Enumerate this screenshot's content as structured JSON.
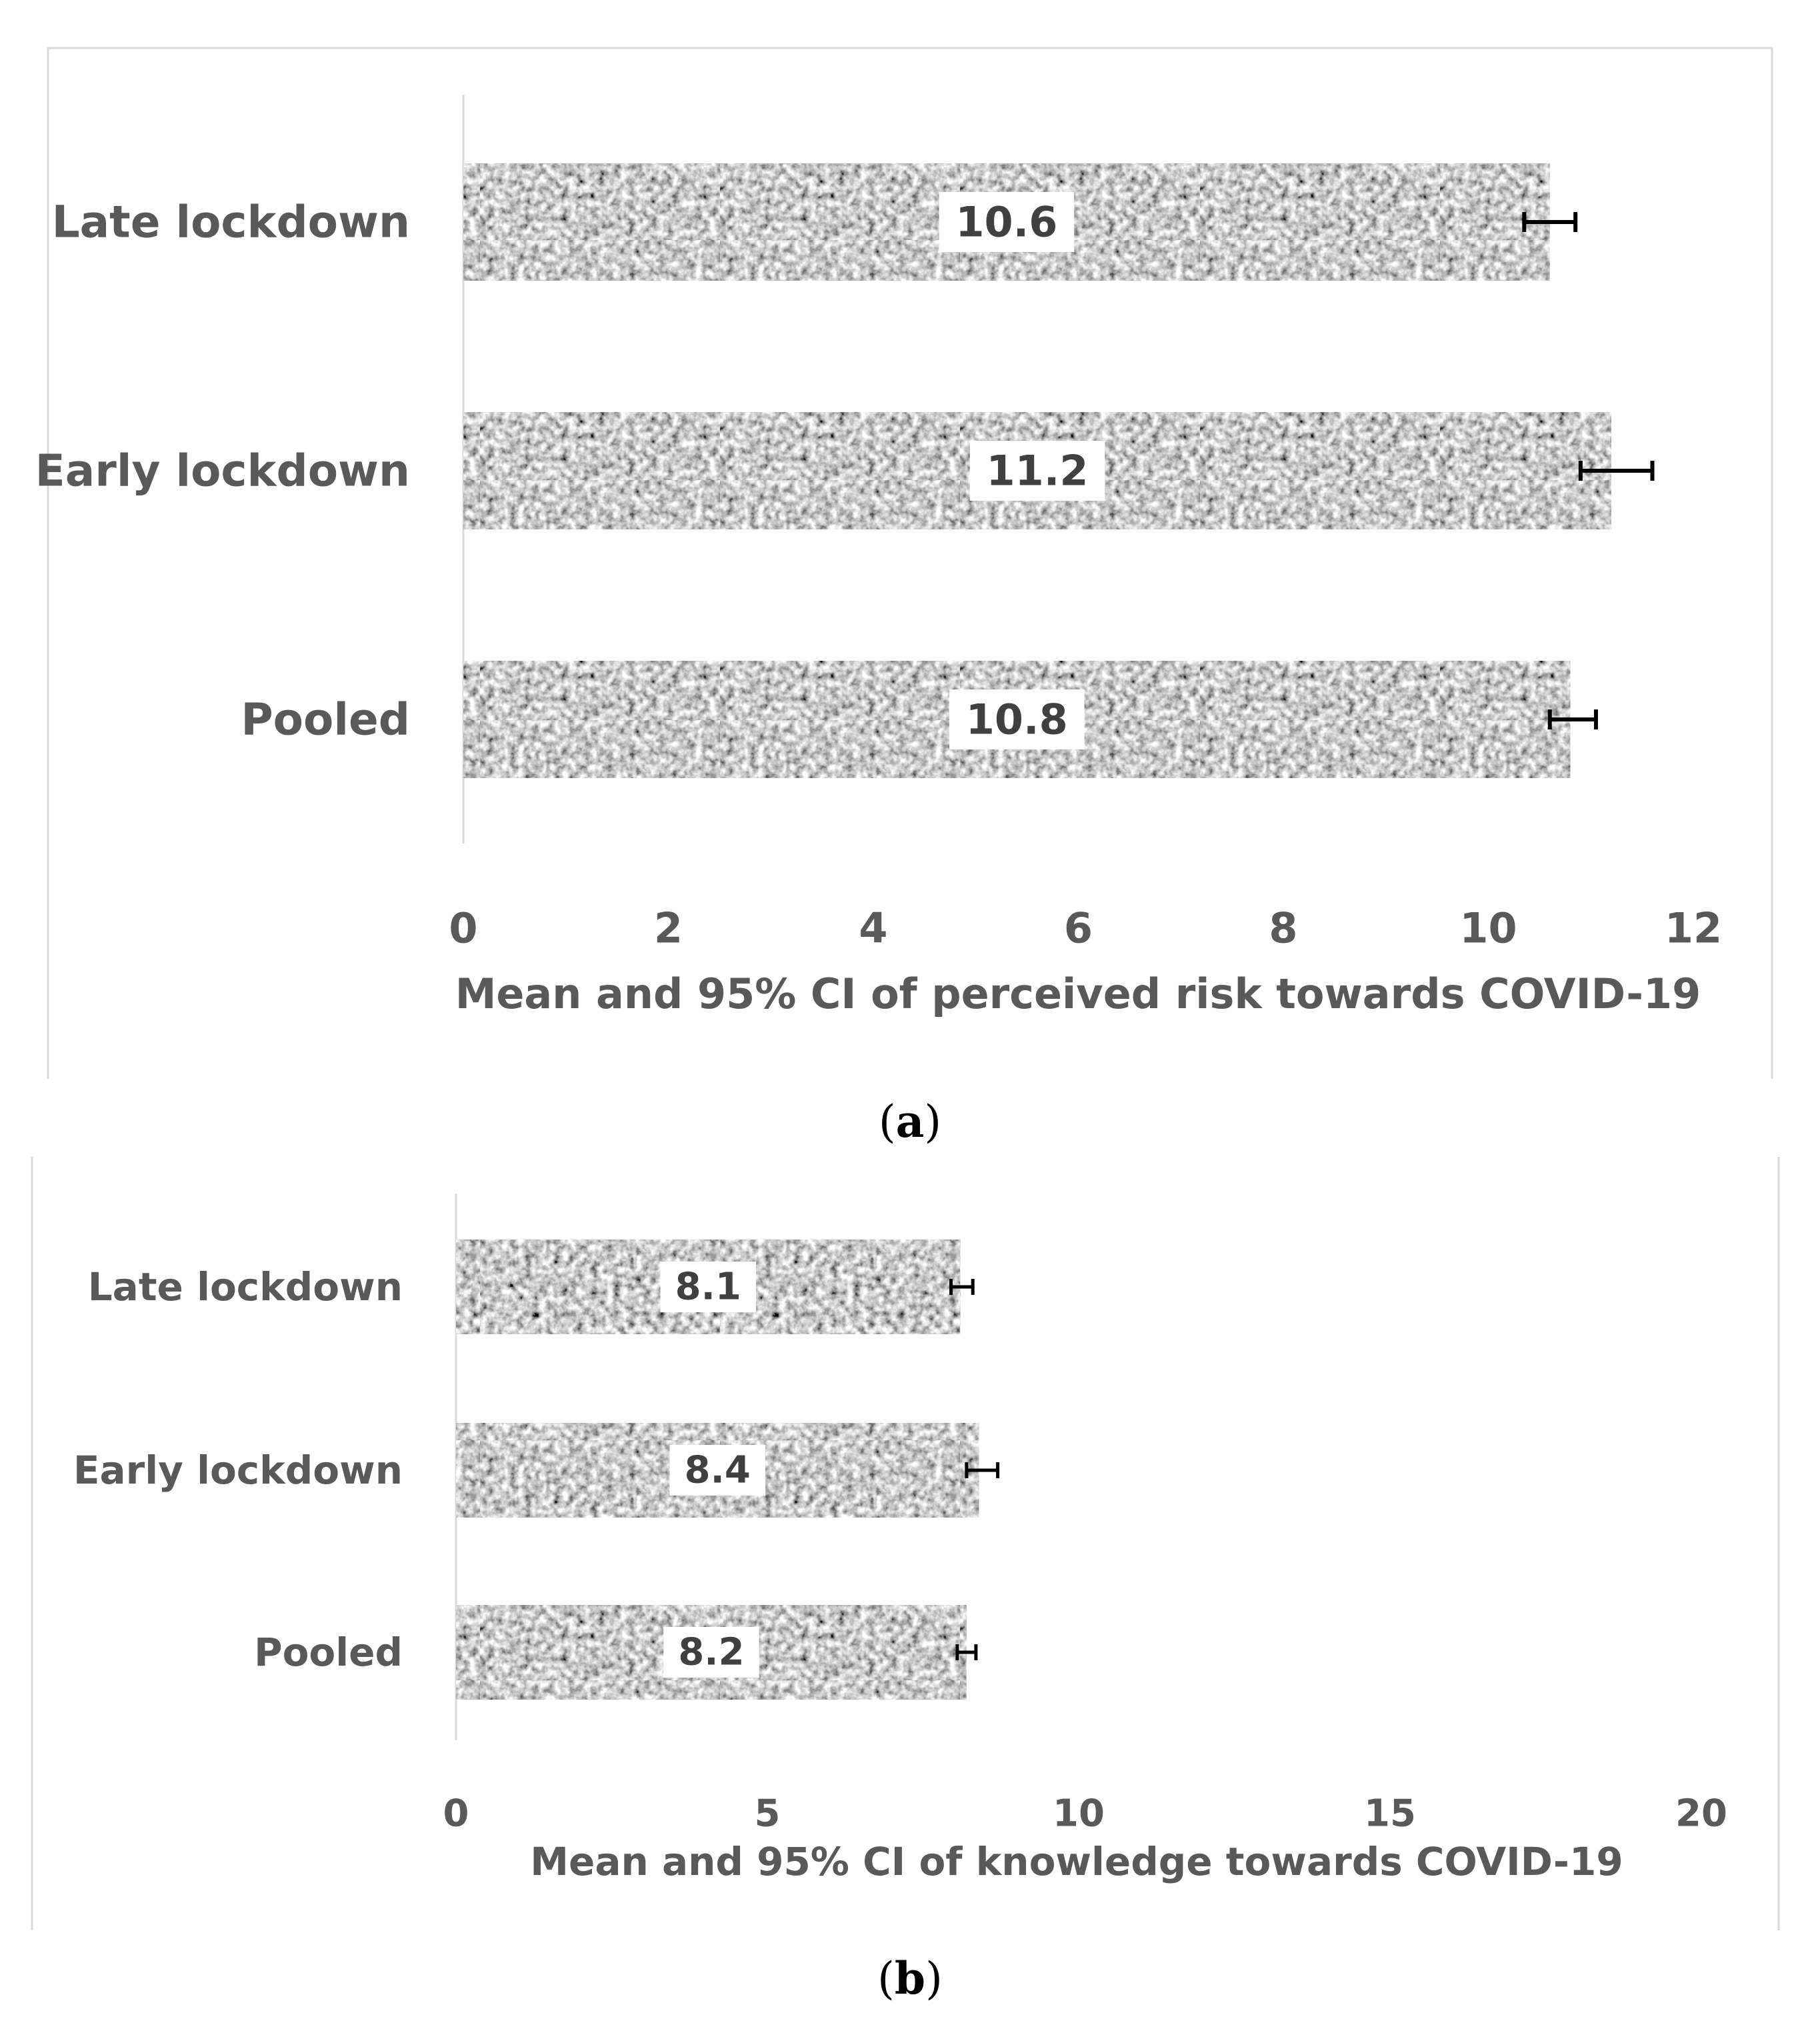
{
  "chart_data": [
    {
      "type": "bar",
      "orientation": "horizontal",
      "panel_label": "a",
      "title": "",
      "categories": [
        "Late lockdown",
        "Early lockdown",
        "Pooled"
      ],
      "values": [
        10.6,
        11.2,
        10.8
      ],
      "value_labels": [
        "10.6",
        "11.2",
        "10.8"
      ],
      "ci_lower": [
        10.35,
        10.9,
        10.6
      ],
      "ci_upper": [
        10.85,
        11.6,
        11.05
      ],
      "xlim": [
        0,
        12
      ],
      "xticks": [
        "0",
        "2",
        "4",
        "6",
        "8",
        "10",
        "12"
      ],
      "xlabel": "Mean and 95% CI of perceived risk towards COVID-19",
      "ylabel": "",
      "grid": false,
      "legend": "none"
    },
    {
      "type": "bar",
      "orientation": "horizontal",
      "panel_label": "b",
      "title": "",
      "categories": [
        "Late lockdown",
        "Early lockdown",
        "Pooled"
      ],
      "values": [
        8.1,
        8.4,
        8.2
      ],
      "value_labels": [
        "8.1",
        "8.4",
        "8.2"
      ],
      "ci_lower": [
        7.95,
        8.2,
        8.05
      ],
      "ci_upper": [
        8.3,
        8.7,
        8.35
      ],
      "xlim": [
        0,
        20
      ],
      "xticks": [
        "0",
        "5",
        "10",
        "15",
        "20"
      ],
      "xlabel": "Mean  and 95% CI of knowledge towards COVID-19",
      "ylabel": "",
      "grid": false,
      "legend": "none"
    }
  ],
  "captions": {
    "a": "a",
    "b": "b"
  },
  "colors": {
    "bar_texture_light": "#e2e2e2",
    "bar_texture_dark": "#5a5a5a",
    "label_text": "#595959",
    "data_label_text": "#404040",
    "axis_line": "#d9d9d9",
    "frame": "#d9d9d9",
    "error_bar": "#000000"
  }
}
